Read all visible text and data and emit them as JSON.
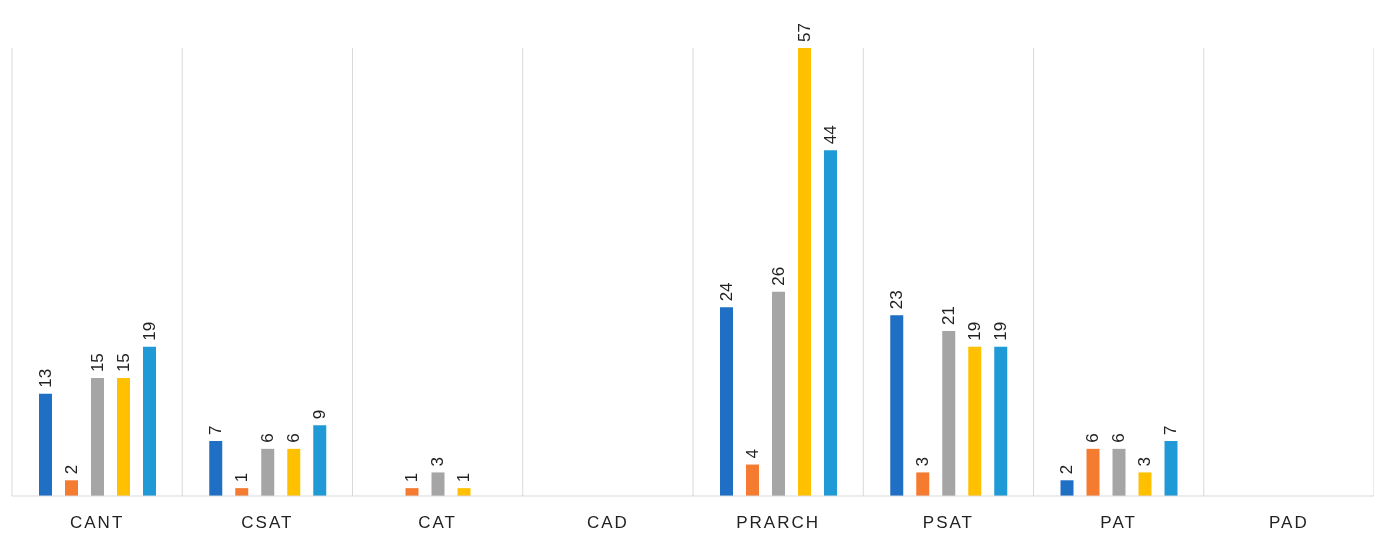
{
  "chart_data": {
    "type": "bar",
    "categories": [
      "CANT",
      "CSAT",
      "CAT",
      "CAD",
      "PRARCH",
      "PSAT",
      "PAT",
      "PAD"
    ],
    "series": [
      {
        "color": "#1f6fc5",
        "values": [
          13,
          7,
          null,
          null,
          24,
          23,
          2,
          null
        ]
      },
      {
        "color": "#f47b30",
        "values": [
          2,
          1,
          1,
          null,
          4,
          3,
          6,
          null
        ]
      },
      {
        "color": "#a5a5a5",
        "values": [
          15,
          6,
          3,
          null,
          26,
          21,
          6,
          null
        ]
      },
      {
        "color": "#ffc000",
        "values": [
          15,
          6,
          1,
          null,
          57,
          19,
          3,
          null
        ]
      },
      {
        "color": "#1f9ad6",
        "values": [
          19,
          9,
          null,
          null,
          44,
          19,
          7,
          null
        ]
      }
    ],
    "data_labels": true,
    "grid": "x"
  }
}
